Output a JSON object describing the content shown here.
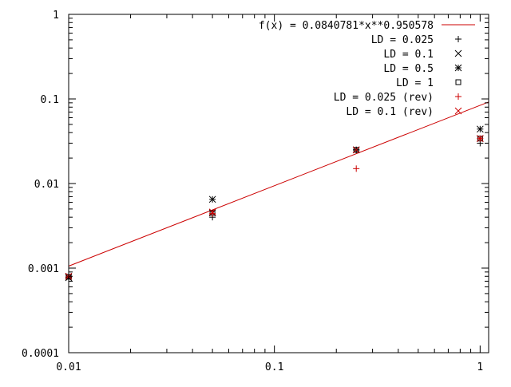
{
  "chart_data": {
    "type": "scatter",
    "title": "",
    "xlabel": "",
    "ylabel": "",
    "x_scale": "log",
    "y_scale": "log",
    "xlim": [
      0.01,
      1.1
    ],
    "ylim": [
      0.0001,
      1
    ],
    "x_ticks": [
      0.01,
      0.1,
      1
    ],
    "x_tick_labels": [
      "0.01",
      "0.1",
      "1"
    ],
    "y_ticks": [
      0.0001,
      0.001,
      0.01,
      0.1,
      1
    ],
    "y_tick_labels": [
      "0.0001",
      "0.001",
      "0.01",
      "0.1",
      "1"
    ],
    "grid": false,
    "legend_position": "top-right",
    "fit": {
      "label": "f(x) = 0.0840781*x**0.950578",
      "a": 0.0840781,
      "b": 0.950578,
      "color": "#cc0000"
    },
    "series": [
      {
        "name": "LD = 0.025",
        "marker": "plus",
        "color": "#000000",
        "x": [
          0.01,
          0.05,
          0.25,
          1.0
        ],
        "y": [
          0.00078,
          0.004,
          0.025,
          0.03
        ]
      },
      {
        "name": "LD = 0.1",
        "marker": "cross",
        "color": "#000000",
        "x": [
          0.01,
          0.05,
          0.25,
          1.0
        ],
        "y": [
          0.0008,
          0.0045,
          0.025,
          0.034
        ]
      },
      {
        "name": "LD = 0.5",
        "marker": "star",
        "color": "#000000",
        "x": [
          0.01,
          0.05,
          0.25,
          1.0
        ],
        "y": [
          0.00077,
          0.0065,
          0.025,
          0.044
        ]
      },
      {
        "name": "LD = 1",
        "marker": "square",
        "color": "#000000",
        "x": [
          0.01,
          0.05,
          0.25,
          1.0
        ],
        "y": [
          0.00079,
          0.0045,
          0.025,
          0.034
        ]
      },
      {
        "name": "LD = 0.025 (rev)",
        "marker": "plus",
        "color": "#cc0000",
        "x": [
          0.01,
          0.05,
          0.25,
          1.0
        ],
        "y": [
          0.00079,
          0.0044,
          0.015,
          0.034
        ]
      },
      {
        "name": "LD = 0.1 (rev)",
        "marker": "cross",
        "color": "#cc0000",
        "x": [
          0.01,
          0.05,
          0.25,
          1.0
        ],
        "y": [
          0.0008,
          0.0046,
          0.025,
          0.034
        ]
      }
    ]
  }
}
